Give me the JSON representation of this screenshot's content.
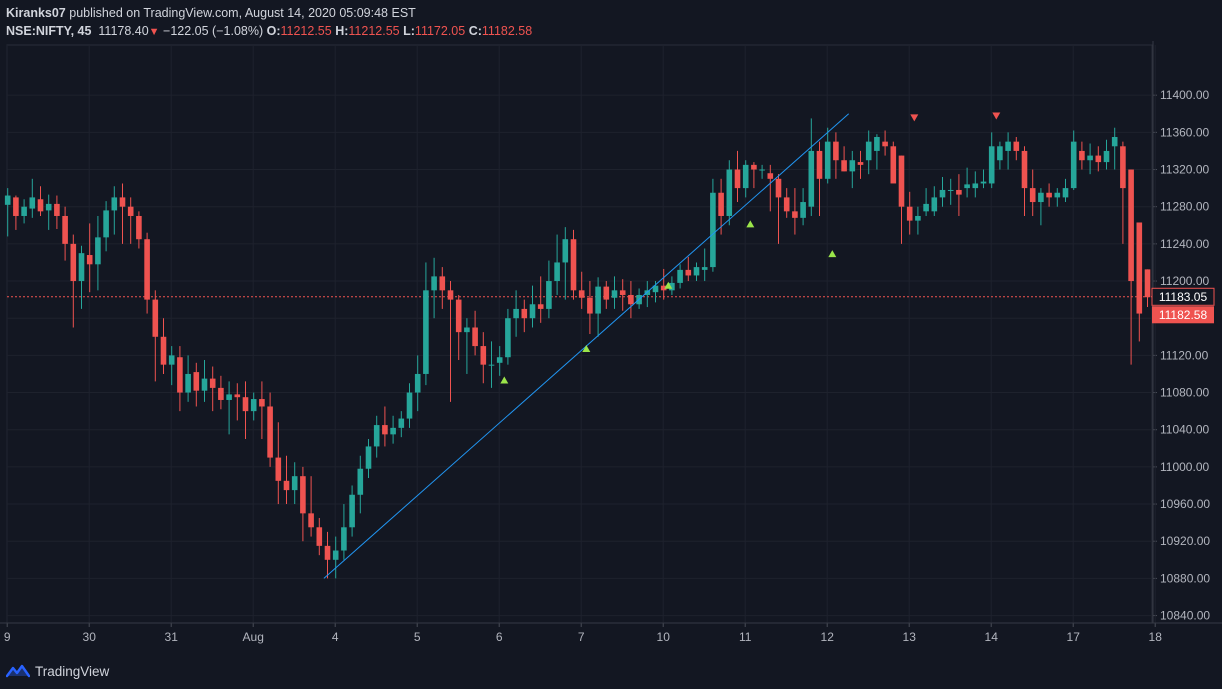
{
  "header": {
    "publisher": "Kiranks07",
    "published_text": "published on TradingView.com, August 14, 2020 05:09:48 EST",
    "symbol": "NSE:NIFTY, 45",
    "last": "11178.40",
    "change": "−122.05 (−1.08%)",
    "o_label": "O:",
    "o_value": "11212.55",
    "h_label": "H:",
    "h_value": "11212.55",
    "l_label": "L:",
    "l_value": "11172.05",
    "c_label": "C:",
    "c_value": "11182.58"
  },
  "footer": {
    "brand": "TradingView"
  },
  "colors": {
    "background": "#131722",
    "up": "#26a69a",
    "down": "#ef5350",
    "grid": "#1e222d",
    "axis_text": "#b2b5be",
    "trendline": "#2196f3",
    "signal_up": "#9be54a",
    "signal_down": "#ef5350"
  },
  "chart_data": {
    "type": "candlestick",
    "symbol": "NSE:NIFTY",
    "interval": "45",
    "y_ticks": [
      11400,
      11360,
      11320,
      11280,
      11240,
      11200,
      11160,
      11120,
      11080,
      11040,
      11000,
      10960,
      10920,
      10880,
      10840
    ],
    "y_tick_labels": [
      "11400.00",
      "11360.00",
      "11320.00",
      "11280.00",
      "11240.00",
      "11200.00",
      "11160.00",
      "11120.00",
      "11080.00",
      "11040.00",
      "11000.00",
      "10960.00",
      "10920.00",
      "10880.00",
      "10840.00"
    ],
    "ylim": [
      10832,
      11454
    ],
    "x_tick_labels": [
      "9",
      "30",
      "31",
      "Aug",
      "4",
      "5",
      "6",
      "7",
      "10",
      "11",
      "12",
      "13",
      "14",
      "17",
      "18"
    ],
    "x_tick_index": [
      0,
      10,
      20,
      30,
      40,
      50,
      60,
      70,
      80,
      90,
      100,
      110,
      120,
      130,
      140
    ],
    "price_labels": [
      {
        "value": "11183.05",
        "price": 11183.05,
        "style": "outline"
      },
      {
        "value": "11182.58",
        "price": 11182.58,
        "style": "filled"
      }
    ],
    "current_price_line": 11183.05,
    "trendline": {
      "from": [
        38.5,
        10880
      ],
      "to": [
        102.5,
        11380
      ]
    },
    "signals_up": [
      [
        60.5,
        11094
      ],
      [
        70.5,
        11128
      ],
      [
        80.5,
        11196
      ],
      [
        90.5,
        11262
      ],
      [
        100.5,
        11230
      ]
    ],
    "signals_down": [
      [
        110.5,
        11375
      ],
      [
        120.5,
        11377
      ]
    ],
    "candles": [
      {
        "o": 11282,
        "h": 11300,
        "l": 11248,
        "c": 11292
      },
      {
        "o": 11290,
        "h": 11292,
        "l": 11255,
        "c": 11270
      },
      {
        "o": 11270,
        "h": 11288,
        "l": 11262,
        "c": 11280
      },
      {
        "o": 11278,
        "h": 11310,
        "l": 11268,
        "c": 11290
      },
      {
        "o": 11288,
        "h": 11302,
        "l": 11270,
        "c": 11275
      },
      {
        "o": 11276,
        "h": 11293,
        "l": 11255,
        "c": 11283
      },
      {
        "o": 11283,
        "h": 11292,
        "l": 11256,
        "c": 11270
      },
      {
        "o": 11270,
        "h": 11280,
        "l": 11222,
        "c": 11240
      },
      {
        "o": 11240,
        "h": 11250,
        "l": 11150,
        "c": 11200
      },
      {
        "o": 11200,
        "h": 11238,
        "l": 11170,
        "c": 11230
      },
      {
        "o": 11228,
        "h": 11262,
        "l": 11188,
        "c": 11218
      },
      {
        "o": 11218,
        "h": 11270,
        "l": 11190,
        "c": 11247
      },
      {
        "o": 11247,
        "h": 11286,
        "l": 11232,
        "c": 11276
      },
      {
        "o": 11276,
        "h": 11302,
        "l": 11250,
        "c": 11290
      },
      {
        "o": 11290,
        "h": 11305,
        "l": 11240,
        "c": 11280
      },
      {
        "o": 11280,
        "h": 11290,
        "l": 11240,
        "c": 11270
      },
      {
        "o": 11270,
        "h": 11275,
        "l": 11235,
        "c": 11245
      },
      {
        "o": 11245,
        "h": 11252,
        "l": 11165,
        "c": 11180
      },
      {
        "o": 11180,
        "h": 11190,
        "l": 11092,
        "c": 11140
      },
      {
        "o": 11140,
        "h": 11160,
        "l": 11100,
        "c": 11110
      },
      {
        "o": 11110,
        "h": 11130,
        "l": 11088,
        "c": 11120
      },
      {
        "o": 11118,
        "h": 11130,
        "l": 11060,
        "c": 11080
      },
      {
        "o": 11080,
        "h": 11120,
        "l": 11070,
        "c": 11100
      },
      {
        "o": 11102,
        "h": 11112,
        "l": 11065,
        "c": 11082
      },
      {
        "o": 11082,
        "h": 11115,
        "l": 11070,
        "c": 11095
      },
      {
        "o": 11095,
        "h": 11108,
        "l": 11060,
        "c": 11085
      },
      {
        "o": 11085,
        "h": 11098,
        "l": 11062,
        "c": 11072
      },
      {
        "o": 11072,
        "h": 11092,
        "l": 11035,
        "c": 11078
      },
      {
        "o": 11078,
        "h": 11090,
        "l": 11050,
        "c": 11075
      },
      {
        "o": 11075,
        "h": 11092,
        "l": 11030,
        "c": 11060
      },
      {
        "o": 11060,
        "h": 11080,
        "l": 11050,
        "c": 11073
      },
      {
        "o": 11073,
        "h": 11092,
        "l": 11030,
        "c": 11065
      },
      {
        "o": 11065,
        "h": 11080,
        "l": 11000,
        "c": 11010
      },
      {
        "o": 11010,
        "h": 11048,
        "l": 10960,
        "c": 10985
      },
      {
        "o": 10985,
        "h": 11012,
        "l": 10960,
        "c": 10975
      },
      {
        "o": 10975,
        "h": 11005,
        "l": 10960,
        "c": 10990
      },
      {
        "o": 10990,
        "h": 11000,
        "l": 10920,
        "c": 10950
      },
      {
        "o": 10950,
        "h": 10990,
        "l": 10925,
        "c": 10935
      },
      {
        "o": 10935,
        "h": 10945,
        "l": 10905,
        "c": 10915
      },
      {
        "o": 10915,
        "h": 10930,
        "l": 10880,
        "c": 10900
      },
      {
        "o": 10900,
        "h": 10925,
        "l": 10880,
        "c": 10910
      },
      {
        "o": 10910,
        "h": 10960,
        "l": 10900,
        "c": 10935
      },
      {
        "o": 10935,
        "h": 10980,
        "l": 10925,
        "c": 10970
      },
      {
        "o": 10970,
        "h": 11012,
        "l": 10950,
        "c": 10998
      },
      {
        "o": 10998,
        "h": 11030,
        "l": 10988,
        "c": 11022
      },
      {
        "o": 11022,
        "h": 11055,
        "l": 11010,
        "c": 11045
      },
      {
        "o": 11045,
        "h": 11065,
        "l": 11022,
        "c": 11035
      },
      {
        "o": 11035,
        "h": 11055,
        "l": 11025,
        "c": 11042
      },
      {
        "o": 11042,
        "h": 11060,
        "l": 11032,
        "c": 11052
      },
      {
        "o": 11052,
        "h": 11090,
        "l": 11042,
        "c": 11080
      },
      {
        "o": 11080,
        "h": 11120,
        "l": 11060,
        "c": 11100
      },
      {
        "o": 11100,
        "h": 11220,
        "l": 11088,
        "c": 11190
      },
      {
        "o": 11190,
        "h": 11225,
        "l": 11160,
        "c": 11205
      },
      {
        "o": 11205,
        "h": 11215,
        "l": 11170,
        "c": 11190
      },
      {
        "o": 11190,
        "h": 11200,
        "l": 11070,
        "c": 11180
      },
      {
        "o": 11180,
        "h": 11185,
        "l": 11115,
        "c": 11145
      },
      {
        "o": 11145,
        "h": 11160,
        "l": 11100,
        "c": 11150
      },
      {
        "o": 11150,
        "h": 11168,
        "l": 11120,
        "c": 11130
      },
      {
        "o": 11130,
        "h": 11145,
        "l": 11090,
        "c": 11110
      },
      {
        "o": 11110,
        "h": 11135,
        "l": 11085,
        "c": 11110
      },
      {
        "o": 11112,
        "h": 11130,
        "l": 11098,
        "c": 11118
      },
      {
        "o": 11118,
        "h": 11170,
        "l": 11110,
        "c": 11160
      },
      {
        "o": 11160,
        "h": 11190,
        "l": 11140,
        "c": 11170
      },
      {
        "o": 11170,
        "h": 11180,
        "l": 11145,
        "c": 11160
      },
      {
        "o": 11160,
        "h": 11195,
        "l": 11150,
        "c": 11175
      },
      {
        "o": 11175,
        "h": 11205,
        "l": 11155,
        "c": 11170
      },
      {
        "o": 11170,
        "h": 11222,
        "l": 11160,
        "c": 11200
      },
      {
        "o": 11200,
        "h": 11250,
        "l": 11185,
        "c": 11220
      },
      {
        "o": 11220,
        "h": 11258,
        "l": 11180,
        "c": 11245
      },
      {
        "o": 11245,
        "h": 11255,
        "l": 11180,
        "c": 11190
      },
      {
        "o": 11190,
        "h": 11210,
        "l": 11170,
        "c": 11182
      },
      {
        "o": 11182,
        "h": 11200,
        "l": 11143,
        "c": 11165
      },
      {
        "o": 11165,
        "h": 11204,
        "l": 11140,
        "c": 11194
      },
      {
        "o": 11194,
        "h": 11200,
        "l": 11170,
        "c": 11180
      },
      {
        "o": 11182,
        "h": 11205,
        "l": 11170,
        "c": 11190
      },
      {
        "o": 11190,
        "h": 11202,
        "l": 11168,
        "c": 11185
      },
      {
        "o": 11185,
        "h": 11200,
        "l": 11160,
        "c": 11175
      },
      {
        "o": 11175,
        "h": 11192,
        "l": 11170,
        "c": 11185
      },
      {
        "o": 11185,
        "h": 11200,
        "l": 11172,
        "c": 11190
      },
      {
        "o": 11188,
        "h": 11200,
        "l": 11177,
        "c": 11195
      },
      {
        "o": 11195,
        "h": 11213,
        "l": 11180,
        "c": 11190
      },
      {
        "o": 11190,
        "h": 11205,
        "l": 11185,
        "c": 11198
      },
      {
        "o": 11198,
        "h": 11218,
        "l": 11192,
        "c": 11212
      },
      {
        "o": 11212,
        "h": 11226,
        "l": 11200,
        "c": 11206
      },
      {
        "o": 11206,
        "h": 11220,
        "l": 11200,
        "c": 11215
      },
      {
        "o": 11212,
        "h": 11235,
        "l": 11200,
        "c": 11215
      },
      {
        "o": 11215,
        "h": 11310,
        "l": 11210,
        "c": 11295
      },
      {
        "o": 11295,
        "h": 11310,
        "l": 11250,
        "c": 11270
      },
      {
        "o": 11270,
        "h": 11330,
        "l": 11260,
        "c": 11320
      },
      {
        "o": 11320,
        "h": 11340,
        "l": 11285,
        "c": 11300
      },
      {
        "o": 11300,
        "h": 11330,
        "l": 11290,
        "c": 11325
      },
      {
        "o": 11325,
        "h": 11328,
        "l": 11300,
        "c": 11320
      },
      {
        "o": 11320,
        "h": 11325,
        "l": 11310,
        "c": 11320
      },
      {
        "o": 11316,
        "h": 11325,
        "l": 11275,
        "c": 11310
      },
      {
        "o": 11310,
        "h": 11315,
        "l": 11240,
        "c": 11290
      },
      {
        "o": 11290,
        "h": 11300,
        "l": 11268,
        "c": 11275
      },
      {
        "o": 11275,
        "h": 11300,
        "l": 11250,
        "c": 11268
      },
      {
        "o": 11268,
        "h": 11300,
        "l": 11260,
        "c": 11285
      },
      {
        "o": 11280,
        "h": 11375,
        "l": 11270,
        "c": 11340
      },
      {
        "o": 11340,
        "h": 11350,
        "l": 11270,
        "c": 11310
      },
      {
        "o": 11310,
        "h": 11365,
        "l": 11305,
        "c": 11350
      },
      {
        "o": 11350,
        "h": 11360,
        "l": 11310,
        "c": 11330
      },
      {
        "o": 11330,
        "h": 11345,
        "l": 11318,
        "c": 11318
      },
      {
        "o": 11318,
        "h": 11340,
        "l": 11300,
        "c": 11330
      },
      {
        "o": 11328,
        "h": 11340,
        "l": 11310,
        "c": 11325
      },
      {
        "o": 11330,
        "h": 11362,
        "l": 11315,
        "c": 11350
      },
      {
        "o": 11340,
        "h": 11358,
        "l": 11320,
        "c": 11355
      },
      {
        "o": 11350,
        "h": 11362,
        "l": 11335,
        "c": 11345
      },
      {
        "o": 11345,
        "h": 11350,
        "l": 11310,
        "c": 11305
      },
      {
        "o": 11335,
        "h": 11335,
        "l": 11240,
        "c": 11280
      },
      {
        "o": 11280,
        "h": 11296,
        "l": 11250,
        "c": 11265
      },
      {
        "o": 11265,
        "h": 11280,
        "l": 11250,
        "c": 11270
      },
      {
        "o": 11275,
        "h": 11300,
        "l": 11270,
        "c": 11283
      },
      {
        "o": 11275,
        "h": 11302,
        "l": 11270,
        "c": 11290
      },
      {
        "o": 11290,
        "h": 11312,
        "l": 11280,
        "c": 11298
      },
      {
        "o": 11298,
        "h": 11310,
        "l": 11282,
        "c": 11298
      },
      {
        "o": 11298,
        "h": 11315,
        "l": 11270,
        "c": 11293
      },
      {
        "o": 11300,
        "h": 11322,
        "l": 11290,
        "c": 11304
      },
      {
        "o": 11300,
        "h": 11318,
        "l": 11290,
        "c": 11305
      },
      {
        "o": 11305,
        "h": 11320,
        "l": 11300,
        "c": 11307
      },
      {
        "o": 11305,
        "h": 11360,
        "l": 11300,
        "c": 11345
      },
      {
        "o": 11330,
        "h": 11350,
        "l": 11320,
        "c": 11345
      },
      {
        "o": 11340,
        "h": 11360,
        "l": 11320,
        "c": 11350
      },
      {
        "o": 11350,
        "h": 11355,
        "l": 11330,
        "c": 11340
      },
      {
        "o": 11340,
        "h": 11345,
        "l": 11270,
        "c": 11300
      },
      {
        "o": 11300,
        "h": 11320,
        "l": 11270,
        "c": 11285
      },
      {
        "o": 11285,
        "h": 11300,
        "l": 11260,
        "c": 11295
      },
      {
        "o": 11295,
        "h": 11305,
        "l": 11280,
        "c": 11290
      },
      {
        "o": 11290,
        "h": 11300,
        "l": 11280,
        "c": 11295
      },
      {
        "o": 11290,
        "h": 11310,
        "l": 11285,
        "c": 11300
      },
      {
        "o": 11300,
        "h": 11362,
        "l": 11298,
        "c": 11350
      },
      {
        "o": 11340,
        "h": 11350,
        "l": 11320,
        "c": 11330
      },
      {
        "o": 11330,
        "h": 11348,
        "l": 11315,
        "c": 11335
      },
      {
        "o": 11335,
        "h": 11345,
        "l": 11318,
        "c": 11328
      },
      {
        "o": 11328,
        "h": 11352,
        "l": 11320,
        "c": 11340
      },
      {
        "o": 11345,
        "h": 11365,
        "l": 11320,
        "c": 11355
      },
      {
        "o": 11345,
        "h": 11350,
        "l": 11240,
        "c": 11300
      },
      {
        "o": 11320,
        "h": 11320,
        "l": 11110,
        "c": 11200
      },
      {
        "o": 11263,
        "h": 11263,
        "l": 11135,
        "c": 11165
      },
      {
        "o": 11212.55,
        "h": 11212.55,
        "l": 11172.05,
        "c": 11182.58
      }
    ]
  }
}
